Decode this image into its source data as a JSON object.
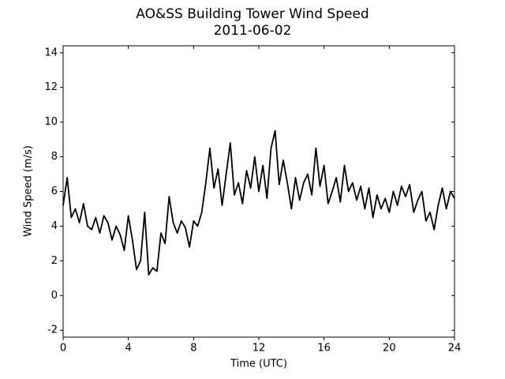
{
  "chart_data": {
    "type": "line",
    "title": "AO&SS Building Tower Wind Speed",
    "subtitle": "2011-06-02",
    "x_label": "Time (UTC)",
    "y_label": "Wind Speed (m/s)",
    "x": [
      0,
      0.25,
      0.5,
      0.75,
      1,
      1.25,
      1.5,
      1.75,
      2,
      2.25,
      2.5,
      2.75,
      3,
      3.25,
      3.5,
      3.75,
      4,
      4.25,
      4.5,
      4.75,
      5,
      5.25,
      5.5,
      5.75,
      6,
      6.25,
      6.5,
      6.75,
      7,
      7.25,
      7.5,
      7.75,
      8,
      8.25,
      8.5,
      8.75,
      9,
      9.25,
      9.5,
      9.75,
      10,
      10.25,
      10.5,
      10.75,
      11,
      11.25,
      11.5,
      11.75,
      12,
      12.25,
      12.5,
      12.75,
      13,
      13.25,
      13.5,
      13.75,
      14,
      14.25,
      14.5,
      14.75,
      15,
      15.25,
      15.5,
      15.75,
      16,
      16.25,
      16.5,
      16.75,
      17,
      17.25,
      17.5,
      17.75,
      18,
      18.25,
      18.5,
      18.75,
      19,
      19.25,
      19.5,
      19.75,
      20,
      20.25,
      20.5,
      20.75,
      21,
      21.25,
      21.5,
      21.75,
      22,
      22.25,
      22.5,
      22.75,
      23,
      23.25,
      23.5,
      23.75,
      24
    ],
    "series": [
      {
        "name": "Wind Speed",
        "color": "#000000",
        "values": [
          5.2,
          6.8,
          4.5,
          5.0,
          4.2,
          5.3,
          4.0,
          3.8,
          4.5,
          3.6,
          4.6,
          4.2,
          3.2,
          4.0,
          3.5,
          2.6,
          4.6,
          3.2,
          1.5,
          2.0,
          4.8,
          1.2,
          1.6,
          1.4,
          3.6,
          3.0,
          5.7,
          4.2,
          3.6,
          4.3,
          3.9,
          2.8,
          4.3,
          4.0,
          4.8,
          6.5,
          8.5,
          6.2,
          7.3,
          5.2,
          7.0,
          8.8,
          5.8,
          6.5,
          5.3,
          7.2,
          6.2,
          8.0,
          6.0,
          7.5,
          5.6,
          8.5,
          9.5,
          6.4,
          7.8,
          6.5,
          5.0,
          6.8,
          5.5,
          6.5,
          7.0,
          5.8,
          8.5,
          6.3,
          7.5,
          5.3,
          6.0,
          6.8,
          5.4,
          7.5,
          6.0,
          6.5,
          5.5,
          6.3,
          5.0,
          6.2,
          4.5,
          5.8,
          5.0,
          5.6,
          4.8,
          6.0,
          5.2,
          6.3,
          5.7,
          6.4,
          4.8,
          5.5,
          6.0,
          4.3,
          4.8,
          3.8,
          5.2,
          6.2,
          5.0,
          6.0,
          5.6
        ]
      }
    ],
    "xlim": [
      0,
      24
    ],
    "xticks": [
      0,
      4,
      8,
      12,
      16,
      20,
      24
    ],
    "ylim": [
      -2.4,
      14.4
    ],
    "yticks": [
      -2,
      0,
      2,
      4,
      6,
      8,
      10,
      12,
      14
    ]
  }
}
